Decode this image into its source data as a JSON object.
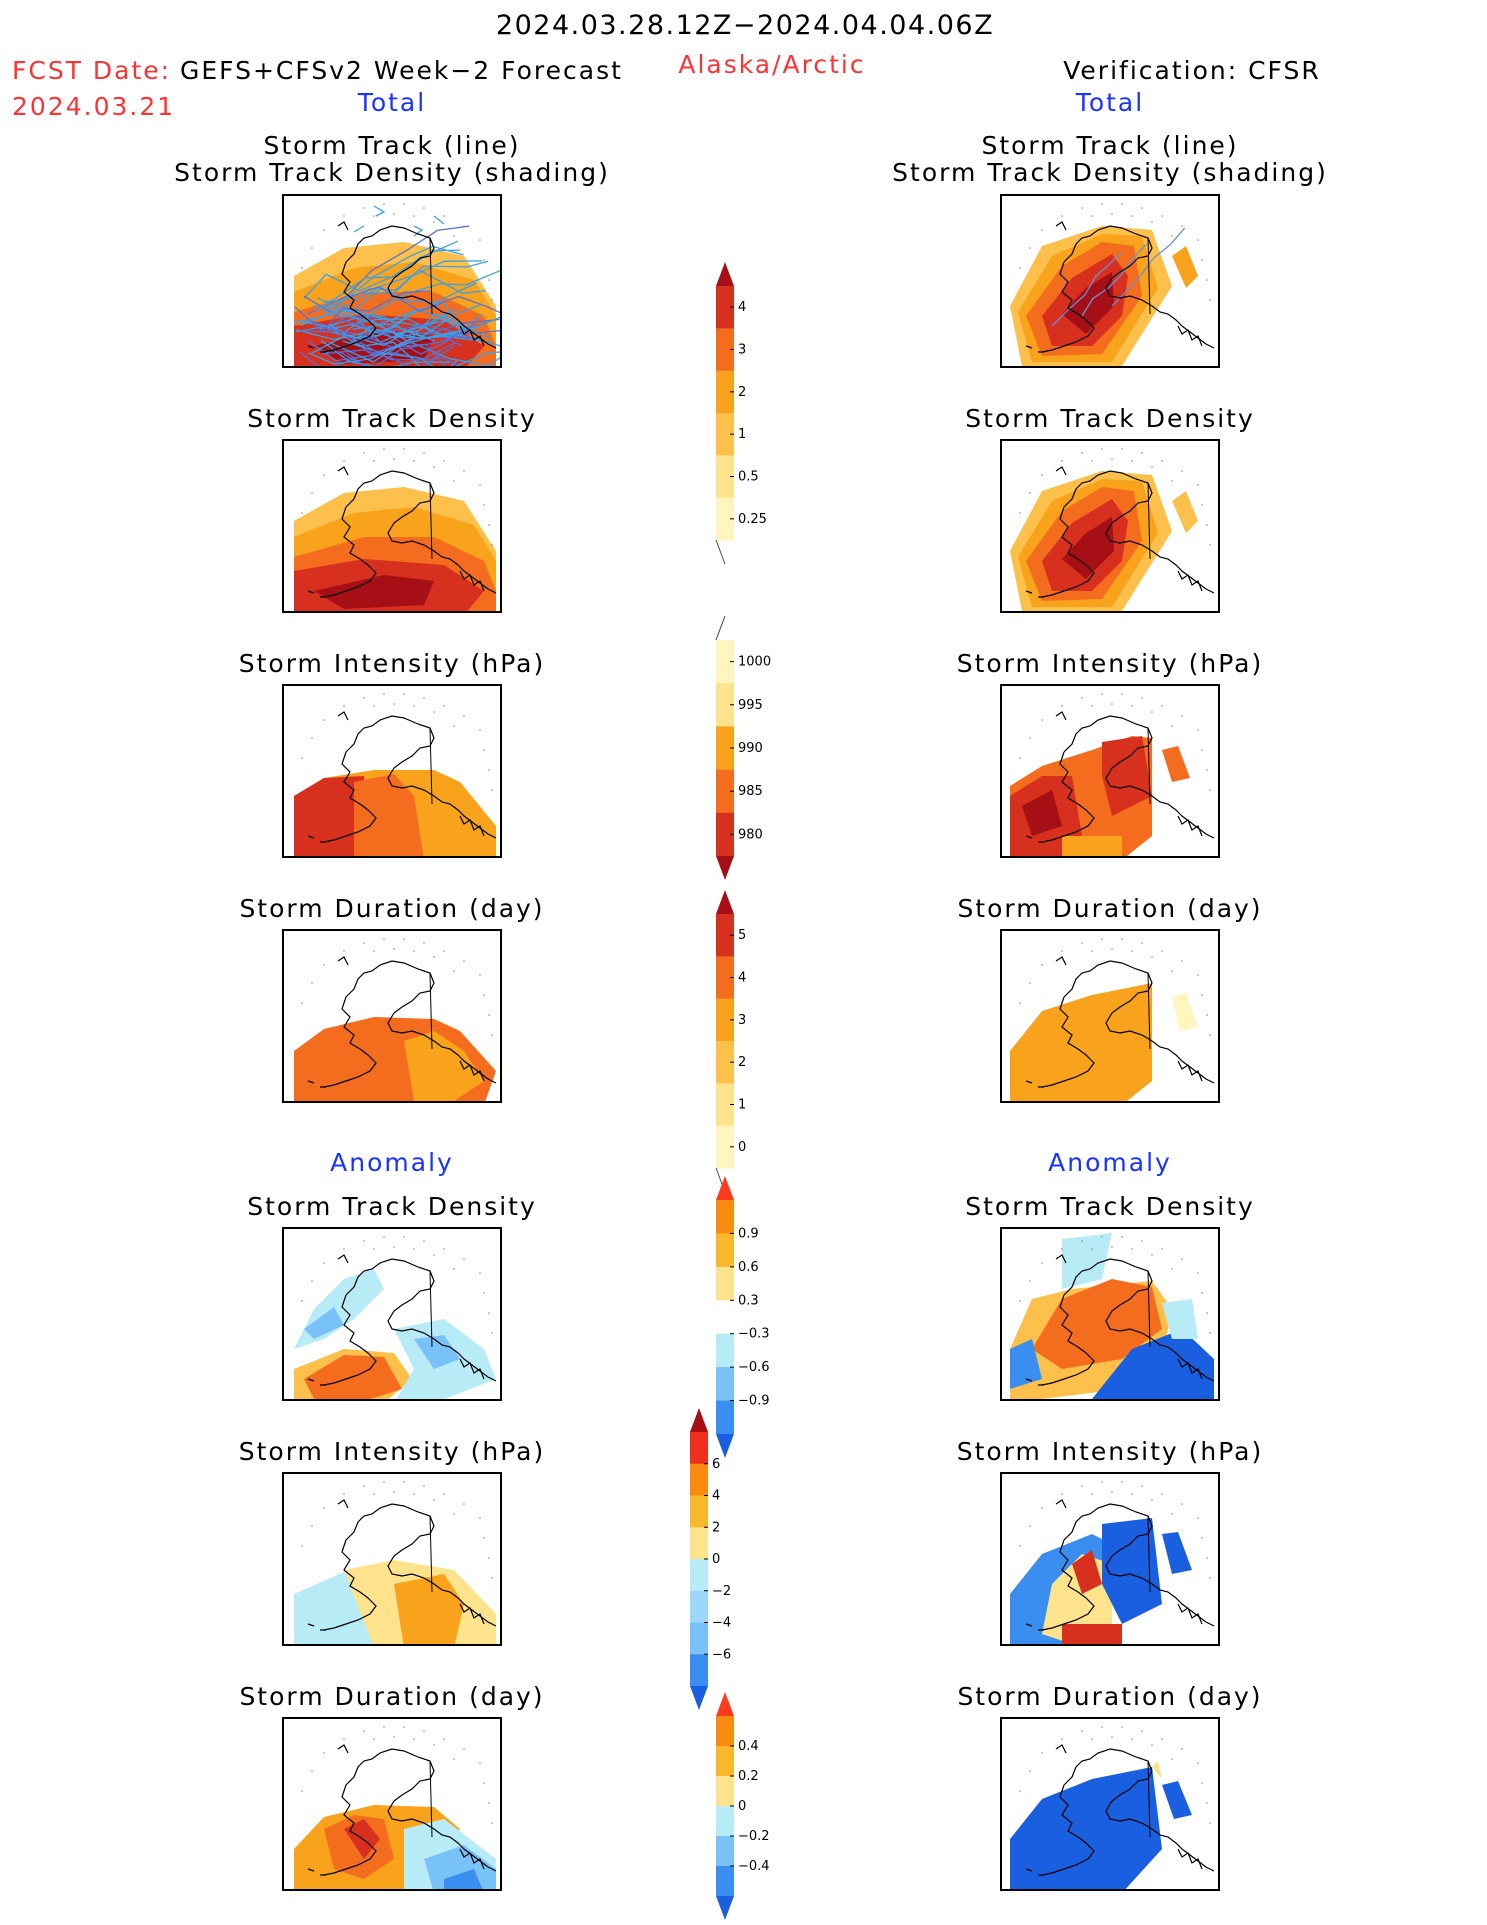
{
  "header": {
    "period": "2024.03.28.12Z−2024.04.04.06Z",
    "fcst_label": "FCST Date:",
    "fcst_model": "GEFS+CFSv2 Week−2 Forecast",
    "fcst_date": "2024.03.21",
    "region": "Alaska/Arctic",
    "verification": "Verification: CFSR",
    "total_left": "Total",
    "total_right": "Total",
    "anomaly_left": "Anomaly",
    "anomaly_right": "Anomaly"
  },
  "rows": [
    {
      "title_line1": "Storm Track (line)",
      "title_line2": "Storm Track Density (shading)"
    },
    {
      "title_line1": "Storm Track Density"
    },
    {
      "title_line1": "Storm Intensity (hPa)"
    },
    {
      "title_line1": "Storm Duration (day)"
    },
    {
      "title_line1": "Storm Track Density"
    },
    {
      "title_line1": "Storm Intensity (hPa)"
    },
    {
      "title_line1": "Storm Duration (day)"
    }
  ],
  "colorbars": [
    {
      "name": "density",
      "ticks": [
        "4",
        "3",
        "2",
        "1",
        "0.5",
        "0.25"
      ],
      "colors": [
        "#a50f15",
        "#d7301f",
        "#f46d1f",
        "#f9a21b",
        "#fdc04a",
        "#fde48c",
        "#fff6bf"
      ],
      "arrow_top": true,
      "arrow_bottom": false
    },
    {
      "name": "intensity",
      "ticks": [
        "1000",
        "995",
        "990",
        "985",
        "980"
      ],
      "colors": [
        "#fff6bf",
        "#fde48c",
        "#f9a21b",
        "#f46d1f",
        "#d7301f",
        "#a50f15"
      ],
      "arrow_top": false,
      "arrow_bottom": true
    },
    {
      "name": "duration",
      "ticks": [
        "5",
        "4",
        "3",
        "2",
        "1",
        "0"
      ],
      "colors": [
        "#a50f15",
        "#d7301f",
        "#f46d1f",
        "#f9a21b",
        "#fdc04a",
        "#fde48c",
        "#fff6bf"
      ],
      "arrow_top": true,
      "arrow_bottom": false
    },
    {
      "name": "density-anomaly",
      "ticks": [
        "0.9",
        "0.6",
        "0.3",
        "−0.3",
        "−0.6",
        "−0.9"
      ],
      "colors": [
        "#ff3b1f",
        "#f98c10",
        "#f9b72c",
        "#fde48c",
        "#ffffff",
        "#b7ecf7",
        "#79c2f7",
        "#3a8ef0",
        "#1a5fe0"
      ],
      "arrow_top": true,
      "arrow_bottom": true
    },
    {
      "name": "intensity-anomaly",
      "ticks": [
        "6",
        "4",
        "2",
        "0",
        "−2",
        "−4",
        "−6"
      ],
      "colors": [
        "#a50f15",
        "#f0301f",
        "#f98c10",
        "#f9b72c",
        "#fde48c",
        "#b7ecf7",
        "#9dd7f7",
        "#79c2f7",
        "#3a8ef0",
        "#1a5fe0"
      ],
      "arrow_top": true,
      "arrow_bottom": true
    },
    {
      "name": "duration-anomaly",
      "ticks": [
        "0.4",
        "0.2",
        "0",
        "−0.2",
        "−0.4"
      ],
      "colors": [
        "#ff3b1f",
        "#f98c10",
        "#f9b72c",
        "#fde48c",
        "#b7ecf7",
        "#79c2f7",
        "#3a8ef0",
        "#1a5fe0"
      ],
      "arrow_top": true,
      "arrow_bottom": true
    }
  ],
  "colors": {
    "dark_red": "#a50f15",
    "red": "#d7301f",
    "orange_red": "#f46d1f",
    "orange": "#f9a21b",
    "light_orange": "#fdc04a",
    "yellow": "#fde48c",
    "pale_yellow": "#fff6bf",
    "light_blue": "#b7ecf7",
    "mid_blue": "#79c2f7",
    "blue": "#3a8ef0",
    "dark_blue": "#1a5fe0",
    "track_line": "#3aa0e8"
  }
}
